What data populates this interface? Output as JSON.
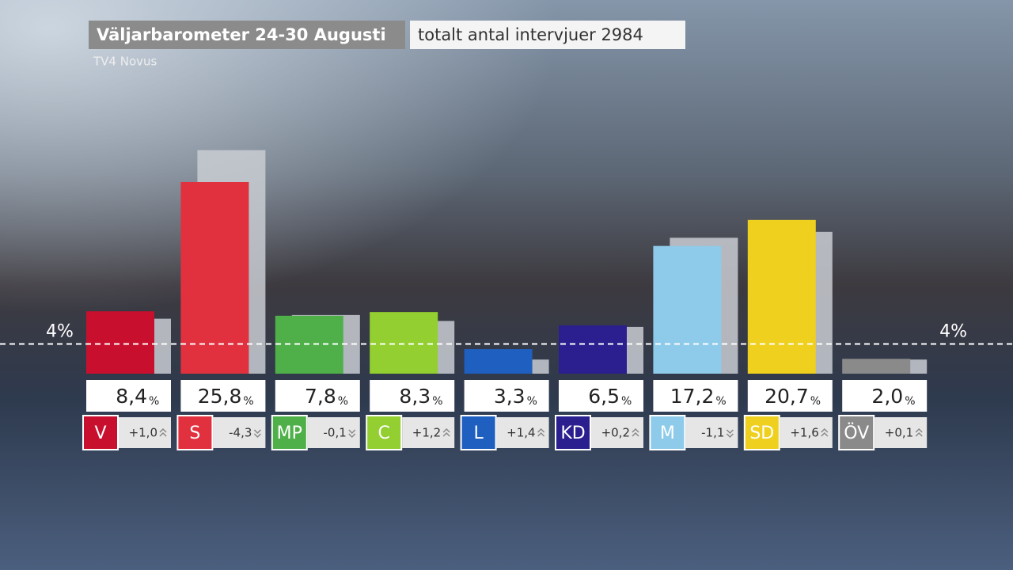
{
  "chart_data": {
    "type": "bar",
    "title": "Väljarbarometer 24-30 Augusti",
    "subtitle": "totalt antal intervjuer 2984",
    "source": "TV4 Novus",
    "categories": [
      "V",
      "S",
      "MP",
      "C",
      "L",
      "KD",
      "M",
      "SD",
      "ÖV"
    ],
    "values": [
      8.4,
      25.8,
      7.8,
      8.3,
      3.3,
      6.5,
      17.2,
      20.7,
      2.0
    ],
    "value_labels": [
      "8,4",
      "25,8",
      "7,8",
      "8,3",
      "3,3",
      "6,5",
      "17,2",
      "20,7",
      "2,0"
    ],
    "unit": "%",
    "changes": [
      1.0,
      -4.3,
      -0.1,
      1.2,
      1.4,
      0.2,
      -1.1,
      1.6,
      0.1
    ],
    "change_labels": [
      "+1,0",
      "-4,3",
      "-0,1",
      "+1,2",
      "+1,4",
      "+0,2",
      "-1,1",
      "+1,6",
      "+0,1"
    ],
    "previous_values": [
      7.4,
      30.1,
      7.9,
      7.1,
      1.9,
      6.3,
      18.3,
      19.1,
      1.9
    ],
    "previous_color": "#c9ccd2",
    "colors": [
      "#c8102e",
      "#e1313f",
      "#4fb04a",
      "#93cf30",
      "#1f5fbf",
      "#2b1f8f",
      "#8ecbea",
      "#efd01f",
      "#8a8a8a"
    ],
    "threshold": 4,
    "threshold_label": "4%",
    "ylim": [
      0,
      30
    ]
  }
}
